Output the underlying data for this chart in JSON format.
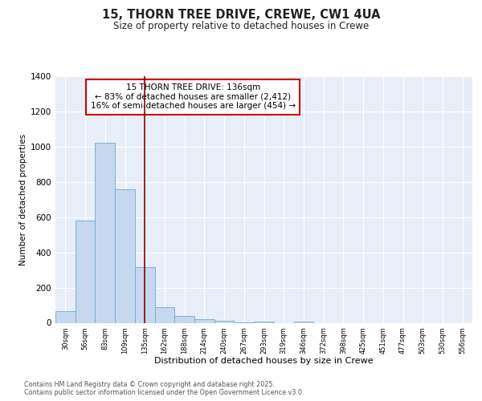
{
  "title_line1": "15, THORN TREE DRIVE, CREWE, CW1 4UA",
  "title_line2": "Size of property relative to detached houses in Crewe",
  "xlabel": "Distribution of detached houses by size in Crewe",
  "ylabel": "Number of detached properties",
  "categories": [
    "30sqm",
    "56sqm",
    "83sqm",
    "109sqm",
    "135sqm",
    "162sqm",
    "188sqm",
    "214sqm",
    "240sqm",
    "267sqm",
    "293sqm",
    "319sqm",
    "346sqm",
    "372sqm",
    "398sqm",
    "425sqm",
    "451sqm",
    "477sqm",
    "503sqm",
    "530sqm",
    "556sqm"
  ],
  "values": [
    65,
    580,
    1020,
    760,
    315,
    88,
    40,
    20,
    10,
    3,
    5,
    0,
    5,
    0,
    0,
    0,
    0,
    0,
    0,
    0,
    0
  ],
  "bar_color": "#c5d8f0",
  "bar_edge_color": "#6fa8d0",
  "bg_color": "#e8eef8",
  "grid_color": "#ffffff",
  "vline_x": 4.0,
  "vline_color": "#8b0000",
  "annotation_text": "15 THORN TREE DRIVE: 136sqm\n← 83% of detached houses are smaller (2,412)\n16% of semi-detached houses are larger (454) →",
  "annotation_box_color": "#ffffff",
  "annotation_box_edge": "#cc0000",
  "ylim": [
    0,
    1400
  ],
  "yticks": [
    0,
    200,
    400,
    600,
    800,
    1000,
    1200,
    1400
  ],
  "footer_line1": "Contains HM Land Registry data © Crown copyright and database right 2025.",
  "footer_line2": "Contains public sector information licensed under the Open Government Licence v3.0."
}
